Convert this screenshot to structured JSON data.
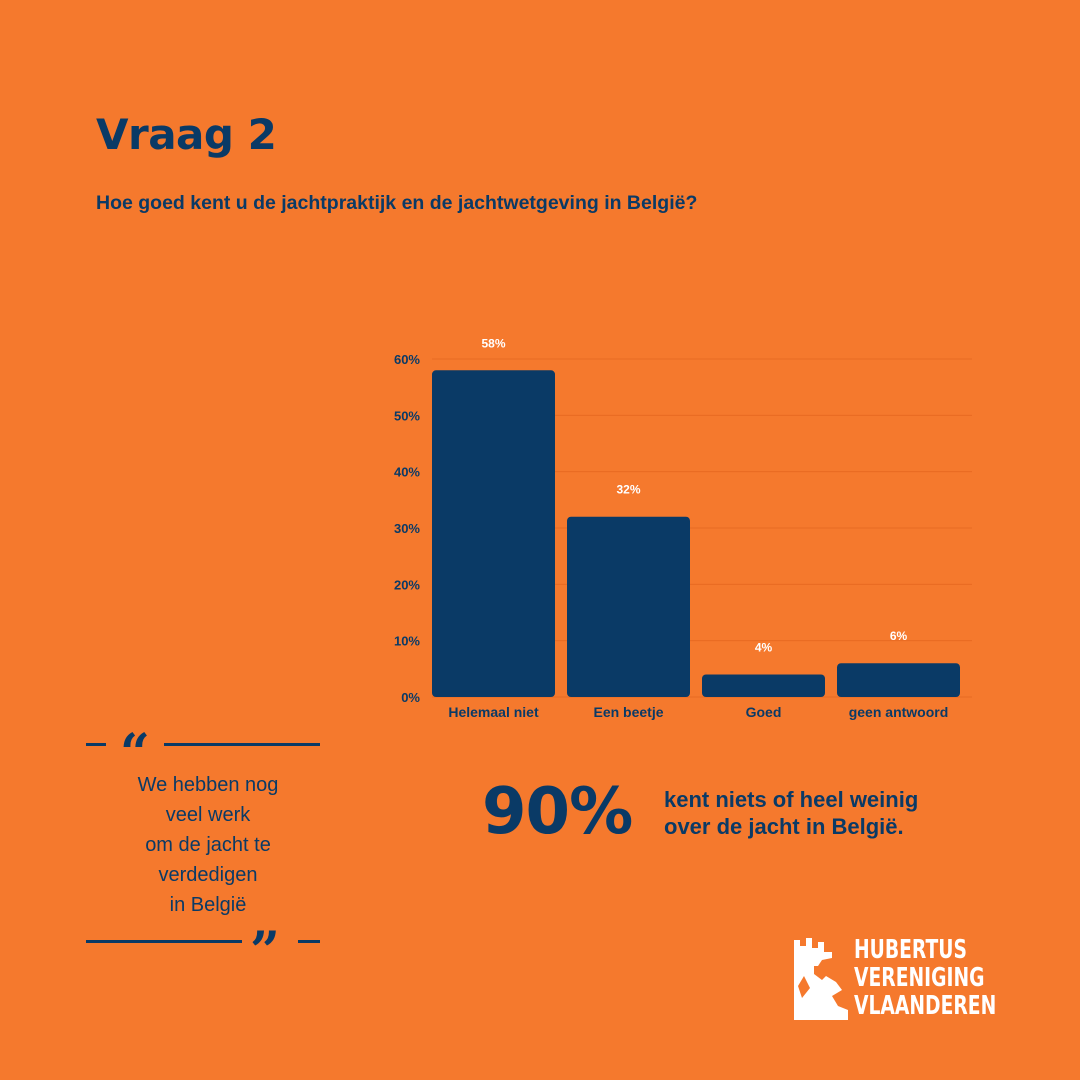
{
  "header": {
    "title": "Vraag 2",
    "question": "Hoe goed kent u de jachtpraktijk en de jachtwetgeving in België?"
  },
  "chart_data": {
    "type": "bar",
    "categories": [
      "Helemaal niet",
      "Een beetje",
      "Goed",
      "geen antwoord"
    ],
    "values": [
      58,
      32,
      4,
      6
    ],
    "value_labels": [
      "58%",
      "32%",
      "4%",
      "6%"
    ],
    "yticks": [
      "0%",
      "10%",
      "20%",
      "30%",
      "40%",
      "50%",
      "60%"
    ],
    "ylim": [
      0,
      60
    ],
    "grid": true,
    "bar_color": "#0A3A66",
    "grid_color": "#E86A22",
    "label_color": "#FFFFFF",
    "title": "",
    "xlabel": "",
    "ylabel": ""
  },
  "quote": {
    "text": "We hebben nog\nveel werk\nom de jacht te\nverdedigen\nin België",
    "open_mark": "“",
    "close_mark": "”"
  },
  "highlight": {
    "value": "90%",
    "text": "kent niets of heel weinig\nover de jacht in België."
  },
  "logo": {
    "line1": "HUBERTUS",
    "line2": "VERENIGING",
    "line3": "VLAANDEREN",
    "icon": "deer-head-icon"
  },
  "colors": {
    "background": "#F5792D",
    "primary": "#0A3A66",
    "white": "#FFFFFF"
  }
}
